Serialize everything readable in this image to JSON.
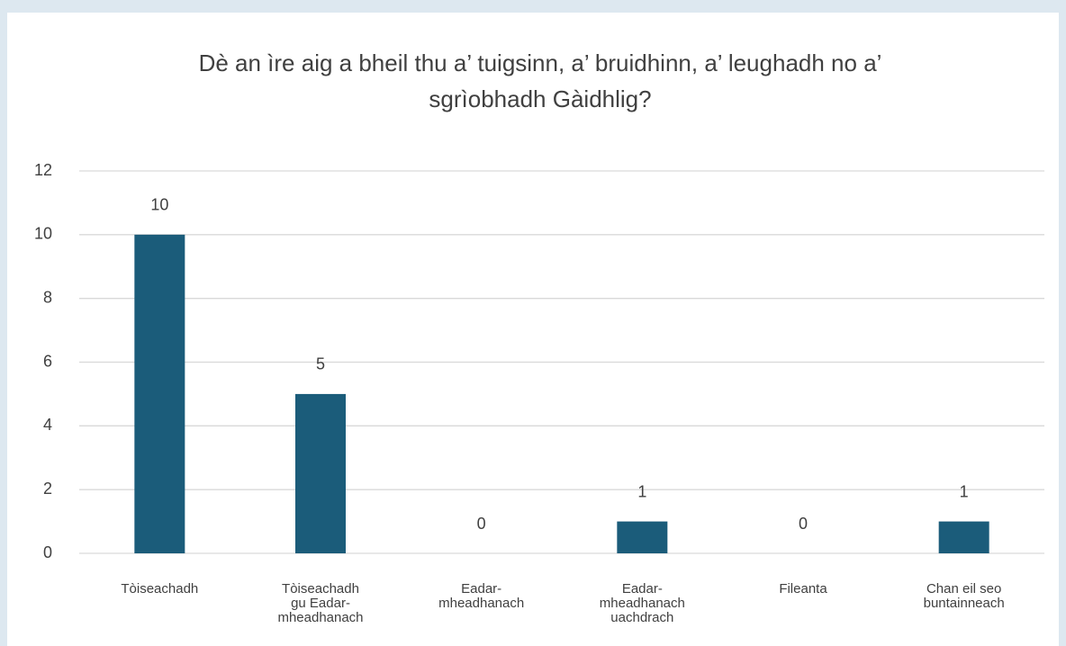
{
  "chart_data": {
    "type": "bar",
    "title": "Dè an ìre aig a bheil thu a’ tuigsinn, a’ bruidhinn, a’ leughadh no a’ sgrìobhadh Gàidhlig?",
    "categories": [
      [
        "Tòiseachadh"
      ],
      [
        "Tòiseachadh",
        "gu  Eadar-",
        "mheadhanach"
      ],
      [
        "Eadar-",
        "mheadhanach"
      ],
      [
        "Eadar-",
        "mheadhanach",
        "uachdrach"
      ],
      [
        "Fileanta"
      ],
      [
        "Chan eil seo",
        "buntainneach"
      ]
    ],
    "values": [
      10,
      5,
      0,
      1,
      0,
      1
    ],
    "color": "#1b5c7a",
    "ylim": [
      0,
      12
    ],
    "yticks": [
      0,
      2,
      4,
      6,
      8,
      10,
      12
    ],
    "grid": true
  }
}
